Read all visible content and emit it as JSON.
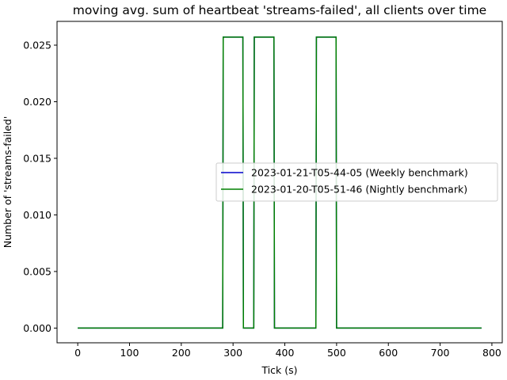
{
  "chart_data": {
    "type": "line",
    "title": "moving avg. sum of heartbeat 'streams-failed', all clients over time",
    "xlabel": "Tick (s)",
    "ylabel": "Number of 'streams-failed'",
    "xlim": [
      -40,
      820
    ],
    "ylim": [
      -0.0013,
      0.0271
    ],
    "xticks": [
      0,
      100,
      200,
      300,
      400,
      500,
      600,
      700,
      800
    ],
    "yticks": [
      0.0,
      0.005,
      0.01,
      0.015,
      0.02,
      0.025
    ],
    "ytick_labels": [
      "0.000",
      "0.005",
      "0.010",
      "0.015",
      "0.020",
      "0.025"
    ],
    "grid": false,
    "legend_position": "center-right",
    "series": [
      {
        "name": "2023-01-21-T05-44-05 (Weekly benchmark)",
        "color": "#0000cc",
        "x": [
          0,
          280,
          281,
          319,
          320,
          340,
          341,
          379,
          380,
          460,
          461,
          499,
          500,
          780
        ],
        "y": [
          0,
          0,
          0.02571,
          0.02571,
          0,
          0,
          0.02571,
          0.02571,
          0,
          0,
          0.02571,
          0.02571,
          0,
          0
        ]
      },
      {
        "name": "2023-01-20-T05-51-46 (Nightly benchmark)",
        "color": "#008000",
        "x": [
          0,
          280,
          281,
          319,
          320,
          340,
          341,
          379,
          380,
          460,
          461,
          499,
          500,
          780
        ],
        "y": [
          0,
          0,
          0.02571,
          0.02571,
          0,
          0,
          0.02571,
          0.02571,
          0,
          0,
          0.02571,
          0.02571,
          0,
          0
        ]
      }
    ]
  }
}
